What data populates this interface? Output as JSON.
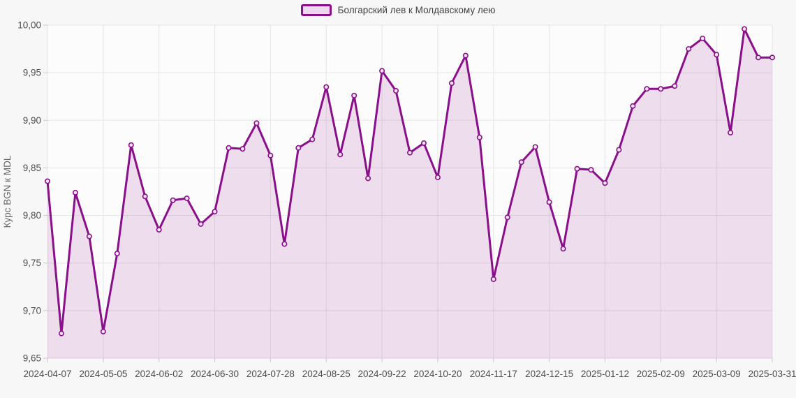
{
  "page": {
    "background": "#f7f7f7",
    "plot_background": "#fcfcfc",
    "grid_color": "#e5e5e5",
    "tick_color": "#c9c9c9",
    "bottom_axis_color": "#d8d8d8"
  },
  "legend": {
    "items": [
      {
        "label": "Болгарский лев к Молдавскому лею",
        "swatch_fill": "#eed8ee",
        "swatch_border": "#8a0f8a"
      }
    ]
  },
  "chart_data": {
    "type": "line",
    "title": "",
    "xlabel": "",
    "ylabel": "Курс BGN к MDL",
    "legend_position": "top-center",
    "grid": true,
    "ylim": [
      9.65,
      10.0
    ],
    "y_tick_step": 0.05,
    "y_tick_labels": [
      "10,00",
      "9,95",
      "9,90",
      "9,85",
      "9,80",
      "9,75",
      "9,70",
      "9,65"
    ],
    "x_tick_indices": [
      0,
      4,
      8,
      12,
      16,
      20,
      24,
      28,
      32,
      36,
      40,
      44,
      48,
      52
    ],
    "x_tick_labels": [
      "2024-04-07",
      "2024-05-05",
      "2024-06-02",
      "2024-06-30",
      "2024-07-28",
      "2024-08-25",
      "2024-09-22",
      "2024-10-20",
      "2024-11-17",
      "2024-12-15",
      "2025-01-12",
      "2025-02-09",
      "2025-03-09",
      "2025-03-31"
    ],
    "series": [
      {
        "name": "Болгарский лев к Молдавскому лею",
        "color": "#8a0f8a",
        "fill_color": "rgba(138,15,138,0.13)",
        "marker_fill": "#f3e6f3",
        "x": [
          "2024-04-07",
          "2024-04-14",
          "2024-04-21",
          "2024-04-28",
          "2024-05-05",
          "2024-05-12",
          "2024-05-19",
          "2024-05-26",
          "2024-06-02",
          "2024-06-09",
          "2024-06-16",
          "2024-06-23",
          "2024-06-30",
          "2024-07-07",
          "2024-07-14",
          "2024-07-21",
          "2024-07-28",
          "2024-08-04",
          "2024-08-11",
          "2024-08-18",
          "2024-08-25",
          "2024-09-01",
          "2024-09-08",
          "2024-09-15",
          "2024-09-22",
          "2024-09-29",
          "2024-10-06",
          "2024-10-13",
          "2024-10-20",
          "2024-10-27",
          "2024-11-03",
          "2024-11-10",
          "2024-11-17",
          "2024-11-24",
          "2024-12-01",
          "2024-12-08",
          "2024-12-15",
          "2024-12-22",
          "2024-12-29",
          "2025-01-05",
          "2025-01-12",
          "2025-01-19",
          "2025-01-26",
          "2025-02-02",
          "2025-02-09",
          "2025-02-16",
          "2025-02-23",
          "2025-03-02",
          "2025-03-09",
          "2025-03-16",
          "2025-03-23",
          "2025-03-30",
          "2025-03-31"
        ],
        "values": [
          9.836,
          9.676,
          9.824,
          9.778,
          9.678,
          9.76,
          9.874,
          9.82,
          9.785,
          9.816,
          9.818,
          9.791,
          9.804,
          9.871,
          9.87,
          9.897,
          9.863,
          9.77,
          9.871,
          9.88,
          9.935,
          9.864,
          9.926,
          9.839,
          9.952,
          9.931,
          9.866,
          9.876,
          9.84,
          9.939,
          9.968,
          9.882,
          9.733,
          9.798,
          9.856,
          9.872,
          9.814,
          9.765,
          9.849,
          9.848,
          9.834,
          9.869,
          9.915,
          9.933,
          9.933,
          9.936,
          9.975,
          9.986,
          9.969,
          9.887,
          9.996,
          9.966,
          9.966
        ]
      }
    ]
  }
}
